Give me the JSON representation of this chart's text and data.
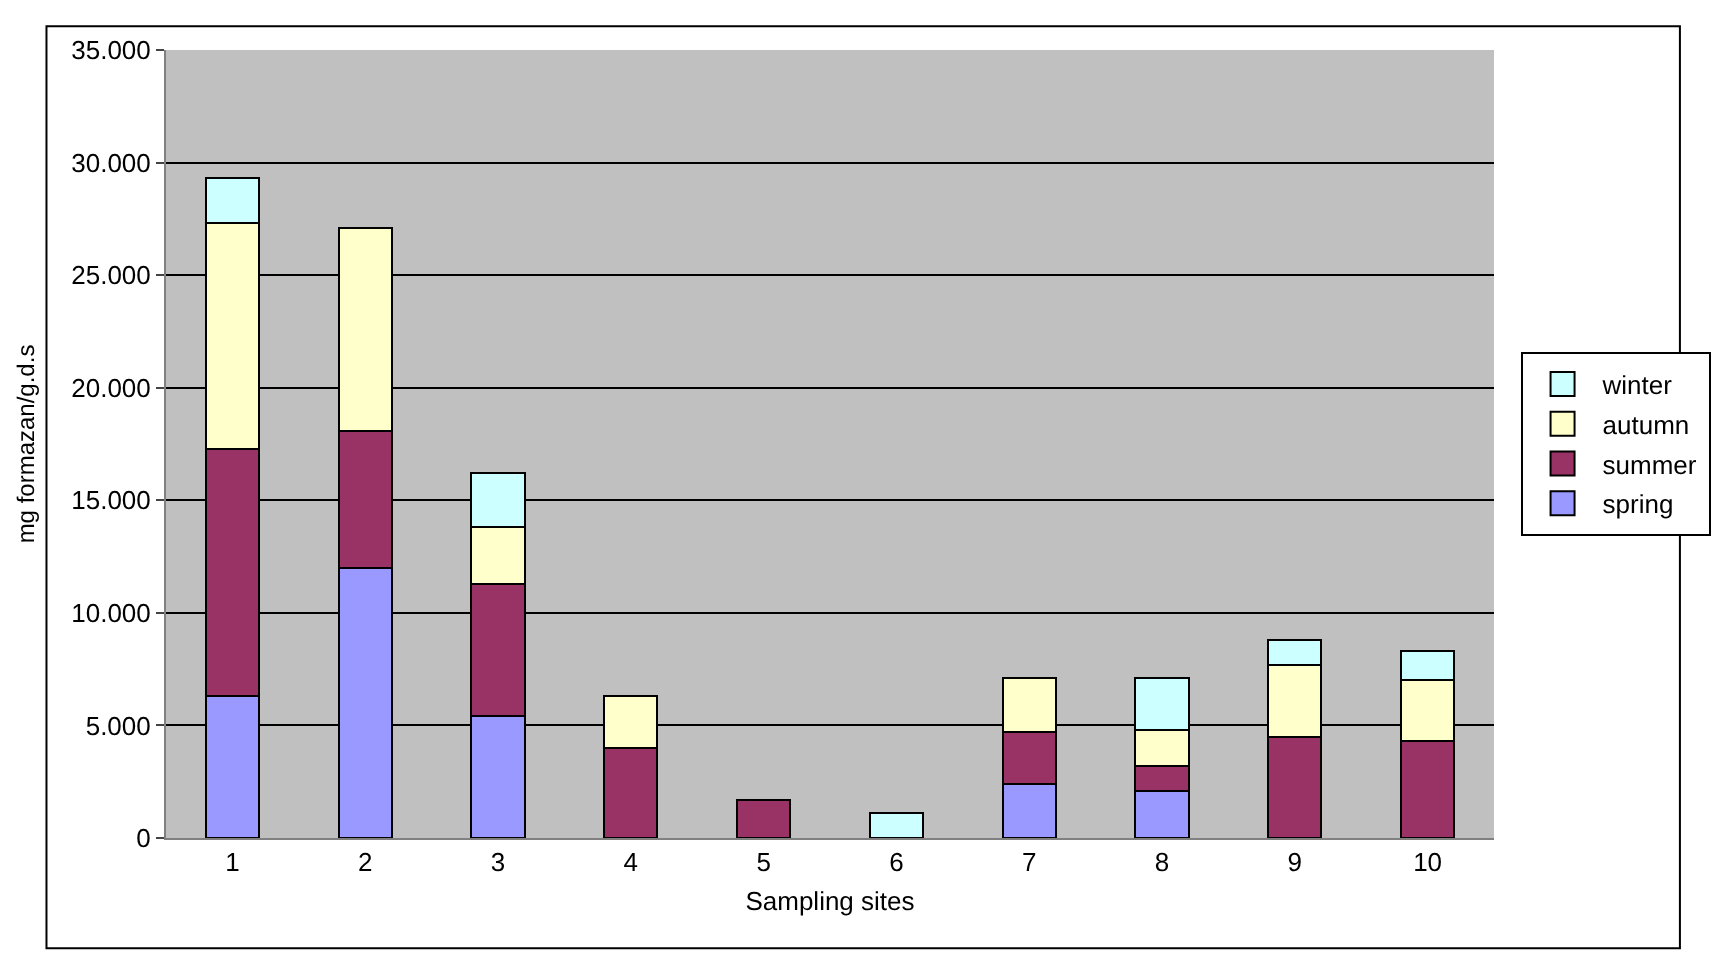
{
  "chart_data": {
    "type": "bar",
    "stacked": true,
    "xlabel": "Sampling sites",
    "ylabel": "mg formazan/g.d.s",
    "categories": [
      "1",
      "2",
      "3",
      "4",
      "5",
      "6",
      "7",
      "8",
      "9",
      "10"
    ],
    "series": [
      {
        "name": "spring",
        "color": "#9999ff",
        "values": [
          6300,
          12000,
          5400,
          0,
          0,
          0,
          2400,
          2100,
          0,
          0
        ]
      },
      {
        "name": "summer",
        "color": "#993366",
        "values": [
          11000,
          6100,
          5900,
          4000,
          1700,
          0,
          2300,
          1100,
          4500,
          4300
        ]
      },
      {
        "name": "autumn",
        "color": "#ffffcc",
        "values": [
          10000,
          9000,
          2500,
          2300,
          0,
          0,
          2400,
          1600,
          3200,
          2700
        ]
      },
      {
        "name": "winter",
        "color": "#ccffff",
        "values": [
          2000,
          0,
          2400,
          0,
          0,
          1100,
          0,
          2300,
          1100,
          1300
        ]
      }
    ],
    "ylim": [
      0,
      35000
    ],
    "yticks": [
      0,
      {
        "value": 5000,
        "label": "5.000"
      },
      {
        "value": 10000,
        "label": "10.000"
      },
      {
        "value": 15000,
        "label": "15.000"
      },
      {
        "value": 20000,
        "label": "20.000"
      },
      {
        "value": 25000,
        "label": "25.000"
      },
      {
        "value": 30000,
        "label": "30.000"
      },
      {
        "value": 35000,
        "label": "35.000"
      }
    ],
    "grid": "y",
    "legend": "right"
  }
}
